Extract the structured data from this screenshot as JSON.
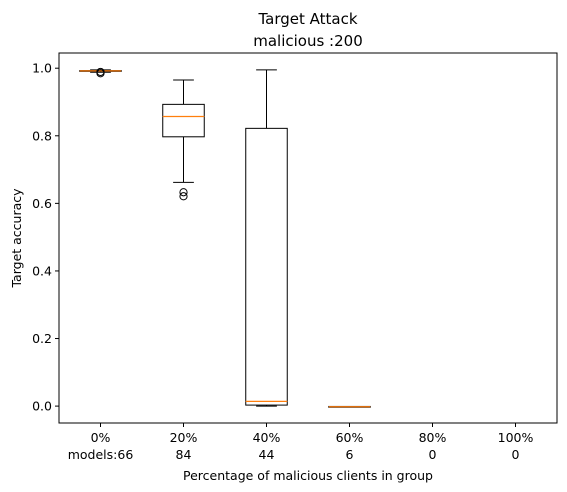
{
  "chart_data": {
    "type": "box",
    "title_line1": "Target Attack",
    "title_line2": "malicious :200",
    "xlabel": "Percentage of malicious clients in group",
    "ylabel": "Target accuracy",
    "ylim": [
      -0.05,
      1.045
    ],
    "yticks": [
      "0.0",
      "0.2",
      "0.4",
      "0.6",
      "0.8",
      "1.0"
    ],
    "ytick_values": [
      0.0,
      0.2,
      0.4,
      0.6,
      0.8,
      1.0
    ],
    "grid": false,
    "colors": {
      "box": "#000000",
      "median": "#ff7f0e",
      "flier": "#000000"
    },
    "categories": [
      {
        "label": "0%",
        "count": "models:66",
        "box": {
          "whislo": 0.988,
          "q1": 0.991,
          "med": 0.992,
          "q3": 0.993,
          "whishi": 0.995,
          "fliers": [
            0.985,
            0.989
          ]
        }
      },
      {
        "label": "20%",
        "count": "84",
        "box": {
          "whislo": 0.662,
          "q1": 0.797,
          "med": 0.857,
          "q3": 0.893,
          "whishi": 0.965,
          "fliers": [
            0.621,
            0.633
          ]
        }
      },
      {
        "label": "40%",
        "count": "44",
        "box": {
          "whislo": 0.0,
          "q1": 0.003,
          "med": 0.014,
          "q3": 0.822,
          "whishi": 0.995,
          "fliers": []
        }
      },
      {
        "label": "60%",
        "count": "6",
        "box": {
          "whislo": -0.002,
          "q1": -0.002,
          "med": -0.002,
          "q3": -0.001,
          "whishi": -0.001,
          "fliers": []
        }
      },
      {
        "label": "80%",
        "count": "0",
        "box": null
      },
      {
        "label": "100%",
        "count": "0",
        "box": null
      }
    ]
  }
}
